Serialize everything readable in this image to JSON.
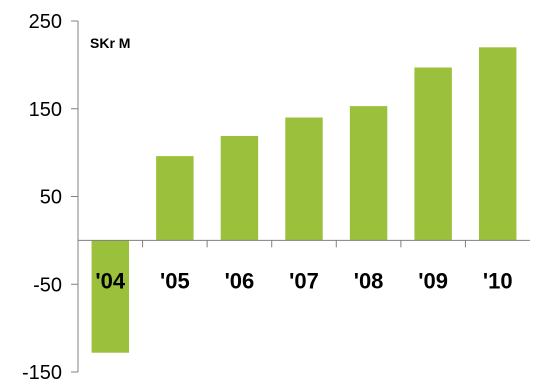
{
  "chart_data": {
    "type": "bar",
    "categories": [
      "'04",
      "'05",
      "'06",
      "'07",
      "'08",
      "'09",
      "'10"
    ],
    "values": [
      -128,
      96,
      119,
      140,
      153,
      197,
      220
    ],
    "title": "",
    "unit_label": "SKr M",
    "xlabel": "",
    "ylabel": "",
    "ylim": [
      -150,
      250
    ],
    "yticks": [
      250,
      150,
      50,
      -50,
      -150
    ],
    "grid": false,
    "legend": "none",
    "bar_color": "#9ac03c",
    "axis_color": "#808080"
  }
}
